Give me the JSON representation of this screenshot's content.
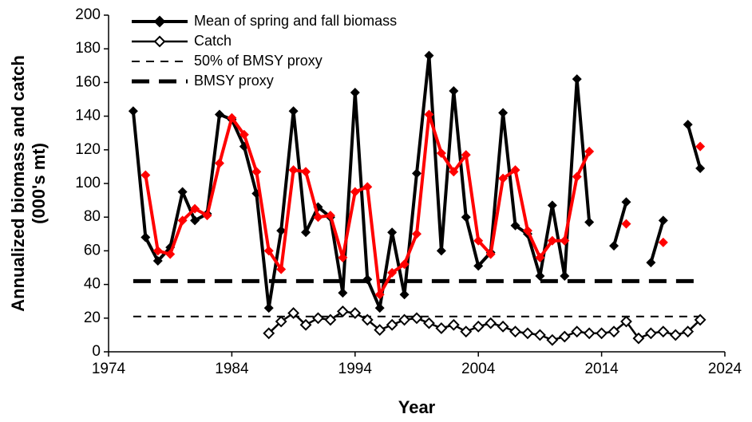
{
  "chart_data": {
    "type": "line",
    "x_label": "Year",
    "y_label": "Annualized biomass and catch",
    "y_label_line2": "(000's mt)",
    "xlim": [
      1974,
      2024
    ],
    "xticks": [
      1974,
      1984,
      1994,
      2004,
      2014,
      2024
    ],
    "ylim": [
      0,
      200
    ],
    "yticks": [
      0,
      20,
      40,
      60,
      80,
      100,
      120,
      140,
      160,
      180,
      200
    ],
    "x": [
      1976,
      1977,
      1978,
      1979,
      1980,
      1981,
      1982,
      1983,
      1984,
      1985,
      1986,
      1987,
      1988,
      1989,
      1990,
      1991,
      1992,
      1993,
      1994,
      1995,
      1996,
      1997,
      1998,
      1999,
      2000,
      2001,
      2002,
      2003,
      2004,
      2005,
      2006,
      2007,
      2008,
      2009,
      2010,
      2011,
      2012,
      2013,
      2014,
      2015,
      2016,
      2017,
      2018,
      2019,
      2020,
      2021,
      2022
    ],
    "series": [
      {
        "name": "Mean of spring and fall biomass",
        "color": "#000000",
        "marker": "filled",
        "values": [
          143,
          68,
          54,
          62,
          95,
          78,
          82,
          141,
          138,
          122,
          94,
          26,
          72,
          143,
          71,
          86,
          80,
          35,
          154,
          43,
          26,
          71,
          34,
          106,
          176,
          60,
          155,
          80,
          51,
          59,
          142,
          75,
          70,
          45,
          87,
          45,
          162,
          77,
          null,
          63,
          89,
          null,
          53,
          78,
          null,
          135,
          109
        ]
      },
      {
        "name": "Catch",
        "color": "#000000",
        "marker": "open",
        "values": [
          null,
          null,
          null,
          null,
          null,
          null,
          null,
          null,
          null,
          null,
          null,
          11,
          18,
          23,
          16,
          20,
          19,
          24,
          23,
          19,
          13,
          16,
          19,
          20,
          17,
          14,
          16,
          12,
          15,
          17,
          15,
          12,
          11,
          10,
          7,
          9,
          12,
          11,
          11,
          12,
          18,
          8,
          11,
          12,
          10,
          12,
          19
        ]
      },
      {
        "color": "#ff0000",
        "marker": "filled",
        "values": [
          null,
          105,
          60,
          58,
          78,
          85,
          81,
          112,
          139,
          129,
          107,
          60,
          49,
          108,
          107,
          80,
          81,
          56,
          95,
          98,
          34,
          47,
          52,
          70,
          141,
          118,
          107,
          117,
          66,
          58,
          103,
          108,
          72,
          56,
          66,
          66,
          104,
          119,
          null,
          null,
          76,
          null,
          null,
          65,
          null,
          null,
          122
        ]
      }
    ],
    "hlines": [
      {
        "name": "50% of BMSY proxy",
        "value": 21,
        "color": "#000000",
        "width": 2
      },
      {
        "name": "BMSY proxy",
        "value": 42,
        "color": "#000000",
        "width": 5
      }
    ]
  }
}
